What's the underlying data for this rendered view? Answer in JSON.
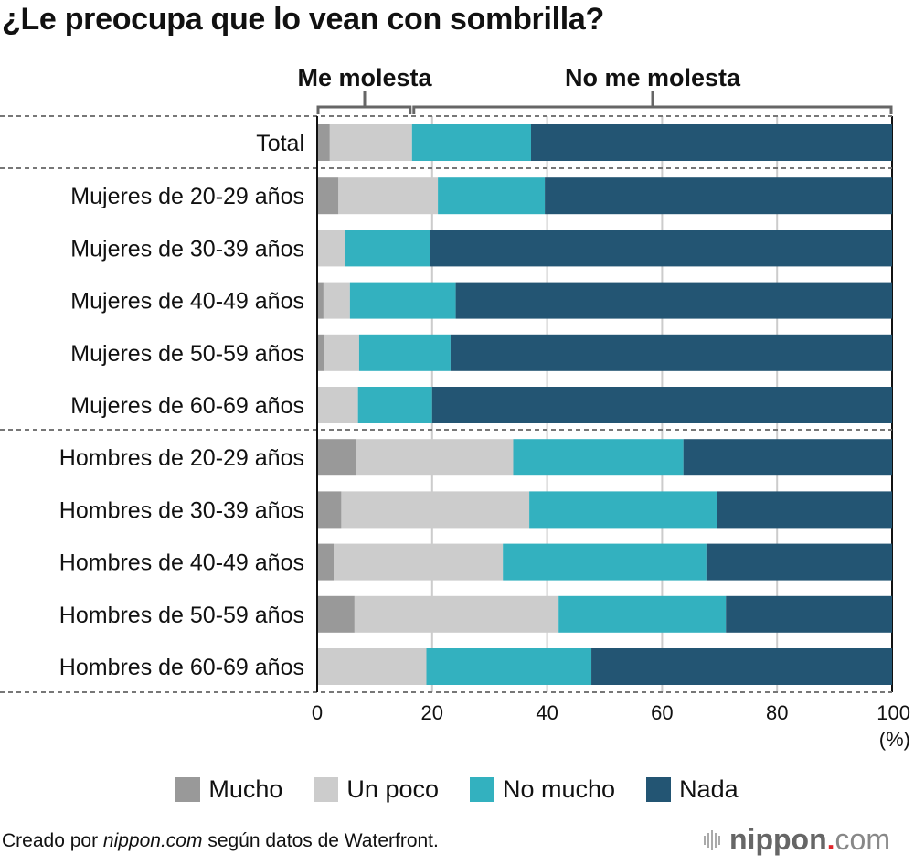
{
  "title": "¿Le preocupa que lo vean con sombrilla?",
  "brackets": {
    "left_label": "Me molesta",
    "right_label": "No me molesta"
  },
  "legend": [
    {
      "label": "Mucho",
      "color": "#999999"
    },
    {
      "label": "Un poco",
      "color": "#cccccc"
    },
    {
      "label": "No mucho",
      "color": "#33b1bf"
    },
    {
      "label": "Nada",
      "color": "#235573"
    }
  ],
  "footer": {
    "prefix": "Creado por ",
    "source_italic": "nippon.com",
    "suffix": " según datos de Waterfront.",
    "logo_name": "nippon",
    "logo_dot": ".",
    "logo_tld": "com"
  },
  "chart_data": {
    "type": "bar",
    "orientation": "horizontal",
    "stacked": true,
    "title": "¿Le preocupa que lo vean con sombrilla?",
    "xlabel": "",
    "ylabel": "",
    "x_unit_label": "(%)",
    "xlim": [
      0,
      100
    ],
    "xticks": [
      0,
      20,
      40,
      60,
      80,
      100
    ],
    "grid": true,
    "legend_position": "bottom",
    "categories": [
      "Total",
      "Mujeres de 20-29 años",
      "Mujeres de 30-39 años",
      "Mujeres de 40-49 años",
      "Mujeres de 50-59 años",
      "Mujeres de 60-69 años",
      "Hombres de 20-29 años",
      "Hombres de 30-39 años",
      "Hombres de 40-49 años",
      "Hombres de 50-59 años",
      "Hombres de 60-69 años"
    ],
    "series": [
      {
        "name": "Mucho",
        "color": "#999999",
        "values": [
          2.2,
          3.7,
          0.0,
          1.1,
          1.2,
          0.0,
          6.8,
          4.2,
          2.9,
          6.5,
          0.0
        ]
      },
      {
        "name": "Un poco",
        "color": "#cccccc",
        "values": [
          14.3,
          17.3,
          4.9,
          4.6,
          6.1,
          7.1,
          27.3,
          32.7,
          29.4,
          35.5,
          19.0
        ]
      },
      {
        "name": "No mucho",
        "color": "#33b1bf",
        "values": [
          20.7,
          18.6,
          14.7,
          18.4,
          15.9,
          12.9,
          29.6,
          32.7,
          35.4,
          29.1,
          28.7
        ]
      },
      {
        "name": "Nada",
        "color": "#235573",
        "values": [
          62.8,
          60.4,
          80.4,
          75.9,
          76.8,
          80.0,
          36.3,
          30.4,
          32.3,
          28.9,
          52.3
        ]
      }
    ],
    "groups": [
      {
        "name": "Me molesta",
        "series": [
          "Mucho",
          "Un poco"
        ]
      },
      {
        "name": "No me molesta",
        "series": [
          "No mucho",
          "Nada"
        ]
      }
    ]
  }
}
